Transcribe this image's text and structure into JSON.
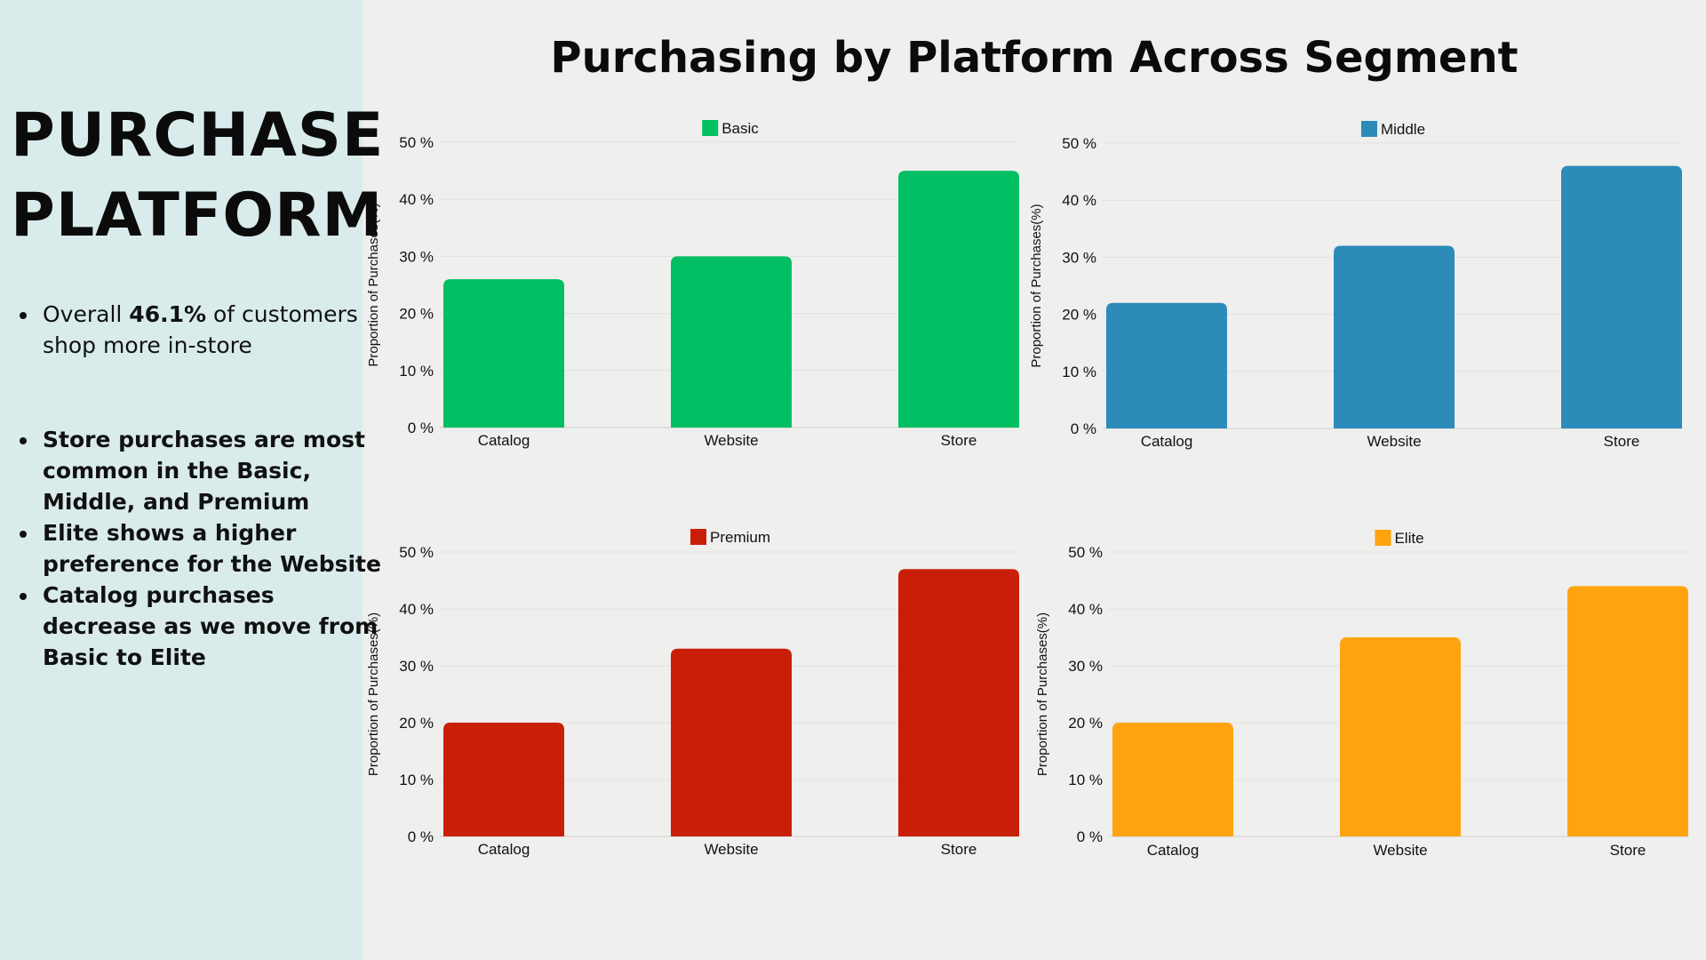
{
  "sidebar": {
    "title_line1": "PURCHASE",
    "title_line2": "PLATFORM",
    "bullet1_prefix": "Overall ",
    "bullet1_bold": "46.1%",
    "bullet1_suffix": " of customers shop more in-store",
    "bullets": [
      "Store purchases are most common in the Basic, Middle, and Premium",
      "Elite shows a higher preference for the Website",
      "Catalog purchases decrease as we move from Basic to Elite"
    ]
  },
  "title": "Purchasing by Platform Across Segment",
  "chart_data": [
    {
      "type": "bar",
      "legend": "Basic",
      "color": "#03bf63",
      "categories": [
        "Catalog",
        "Website",
        "Store"
      ],
      "values": [
        26,
        30,
        45
      ],
      "ylabel": "Proportion of Purchases(%)",
      "yticks": [
        "0 %",
        "10 %",
        "20 %",
        "30 %",
        "40 %",
        "50 %"
      ],
      "ylim": [
        0,
        50
      ],
      "grid": true,
      "legend_position": "top-center"
    },
    {
      "type": "bar",
      "legend": "Middle",
      "color": "#2d8bba",
      "categories": [
        "Catalog",
        "Website",
        "Store"
      ],
      "values": [
        22,
        32,
        46
      ],
      "ylabel": "Proportion of Purchases(%)",
      "yticks": [
        "0 %",
        "10 %",
        "20 %",
        "30 %",
        "40 %",
        "50 %"
      ],
      "ylim": [
        0,
        50
      ],
      "grid": true,
      "legend_position": "top-center"
    },
    {
      "type": "bar",
      "legend": "Premium",
      "color": "#c91f08",
      "categories": [
        "Catalog",
        "Website",
        "Store"
      ],
      "values": [
        20,
        33,
        47
      ],
      "ylabel": "Proportion of Purchases(%)",
      "yticks": [
        "0 %",
        "10 %",
        "20 %",
        "30 %",
        "40 %",
        "50 %"
      ],
      "ylim": [
        0,
        50
      ],
      "grid": true,
      "legend_position": "top-center"
    },
    {
      "type": "bar",
      "legend": "Elite",
      "color": "#ffa40f",
      "categories": [
        "Catalog",
        "Website",
        "Store"
      ],
      "values": [
        20,
        35,
        44
      ],
      "ylabel": "Proportion of Purchases(%)",
      "yticks": [
        "0 %",
        "10 %",
        "20 %",
        "30 %",
        "40 %",
        "50 %"
      ],
      "ylim": [
        0,
        50
      ],
      "grid": true,
      "legend_position": "top-center"
    }
  ]
}
